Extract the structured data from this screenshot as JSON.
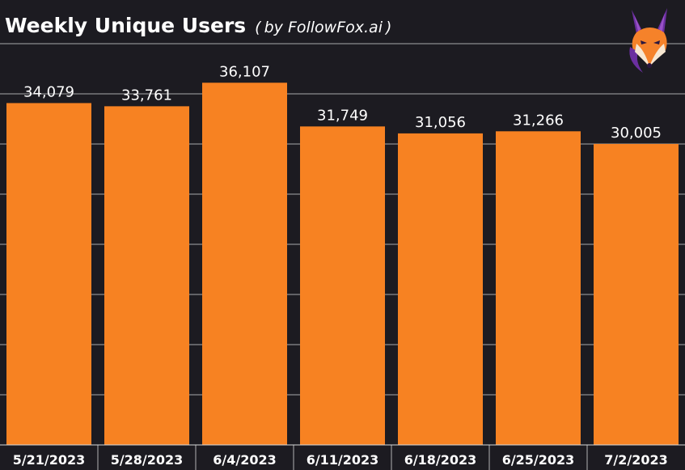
{
  "header": {
    "title": "Weekly Unique Users",
    "subtitle_open": "(",
    "subtitle": "by FollowFox.ai",
    "subtitle_close": ")"
  },
  "logo": {
    "icon": "fox-logo-icon",
    "colors": {
      "purple": "#6b2fa0",
      "violet": "#9a52c8",
      "orange": "#f5822a",
      "cream": "#f7e7d2"
    }
  },
  "colors": {
    "background": "#1c1b21",
    "bar": "#f78222",
    "grid": "#d9d9d9",
    "text": "#ffffff"
  },
  "chart_data": {
    "type": "bar",
    "title": "Weekly Unique Users",
    "subtitle": "(by FollowFox.ai)",
    "xlabel": "",
    "ylabel": "",
    "categories": [
      "5/21/2023",
      "5/28/2023",
      "6/4/2023",
      "6/11/2023",
      "6/18/2023",
      "6/25/2023",
      "7/2/2023"
    ],
    "values": [
      34079,
      33761,
      36107,
      31749,
      31056,
      31266,
      30005
    ],
    "data_labels": [
      "34,079",
      "33,761",
      "36,107",
      "31,749",
      "31,056",
      "31,266",
      "30,005"
    ],
    "ylim": [
      0,
      40000
    ],
    "grid": true,
    "grid_step": 5000,
    "legend": "none"
  }
}
